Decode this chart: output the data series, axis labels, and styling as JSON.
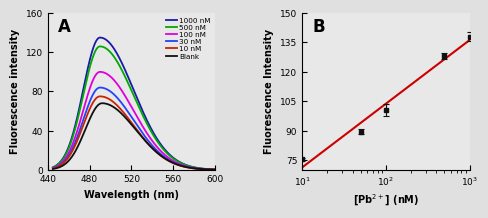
{
  "panel_A": {
    "label": "A",
    "xlabel": "Wavelength (nm)",
    "ylabel": "Fluorescence intensity",
    "xlim": [
      440,
      600
    ],
    "ylim": [
      0,
      160
    ],
    "yticks": [
      0,
      40,
      80,
      120,
      160
    ],
    "xticks": [
      440,
      480,
      520,
      560,
      600
    ],
    "bg_color": "#e8e8e8",
    "curves": [
      {
        "label": "1000 nM",
        "color": "#1a1aaa",
        "peak": 135,
        "peak_wl": 490
      },
      {
        "label": "500 nM",
        "color": "#00aa00",
        "peak": 126,
        "peak_wl": 490
      },
      {
        "label": "100 nM",
        "color": "#dd00dd",
        "peak": 100,
        "peak_wl": 490
      },
      {
        "label": "30 nM",
        "color": "#2244ff",
        "peak": 84,
        "peak_wl": 490
      },
      {
        "label": "10 nM",
        "color": "#cc2200",
        "peak": 75,
        "peak_wl": 490
      },
      {
        "label": "Blank",
        "color": "#111111",
        "peak": 68,
        "peak_wl": 492
      }
    ]
  },
  "panel_B": {
    "label": "B",
    "xlabel": "[Pb$^{2+}$] (nM)",
    "ylabel": "Fluorescence Intensity",
    "xlim": [
      10,
      1000
    ],
    "ylim": [
      70,
      150
    ],
    "yticks": [
      75,
      90,
      105,
      120,
      135,
      150
    ],
    "bg_color": "#e8e8e8",
    "data_x": [
      10,
      50,
      100,
      500,
      1000
    ],
    "data_y": [
      75.5,
      89.5,
      100.5,
      128.0,
      138.0
    ],
    "data_yerr": [
      0.8,
      1.2,
      3.0,
      1.5,
      2.5
    ],
    "line_color": "#cc0000",
    "marker_color": "#111111"
  }
}
